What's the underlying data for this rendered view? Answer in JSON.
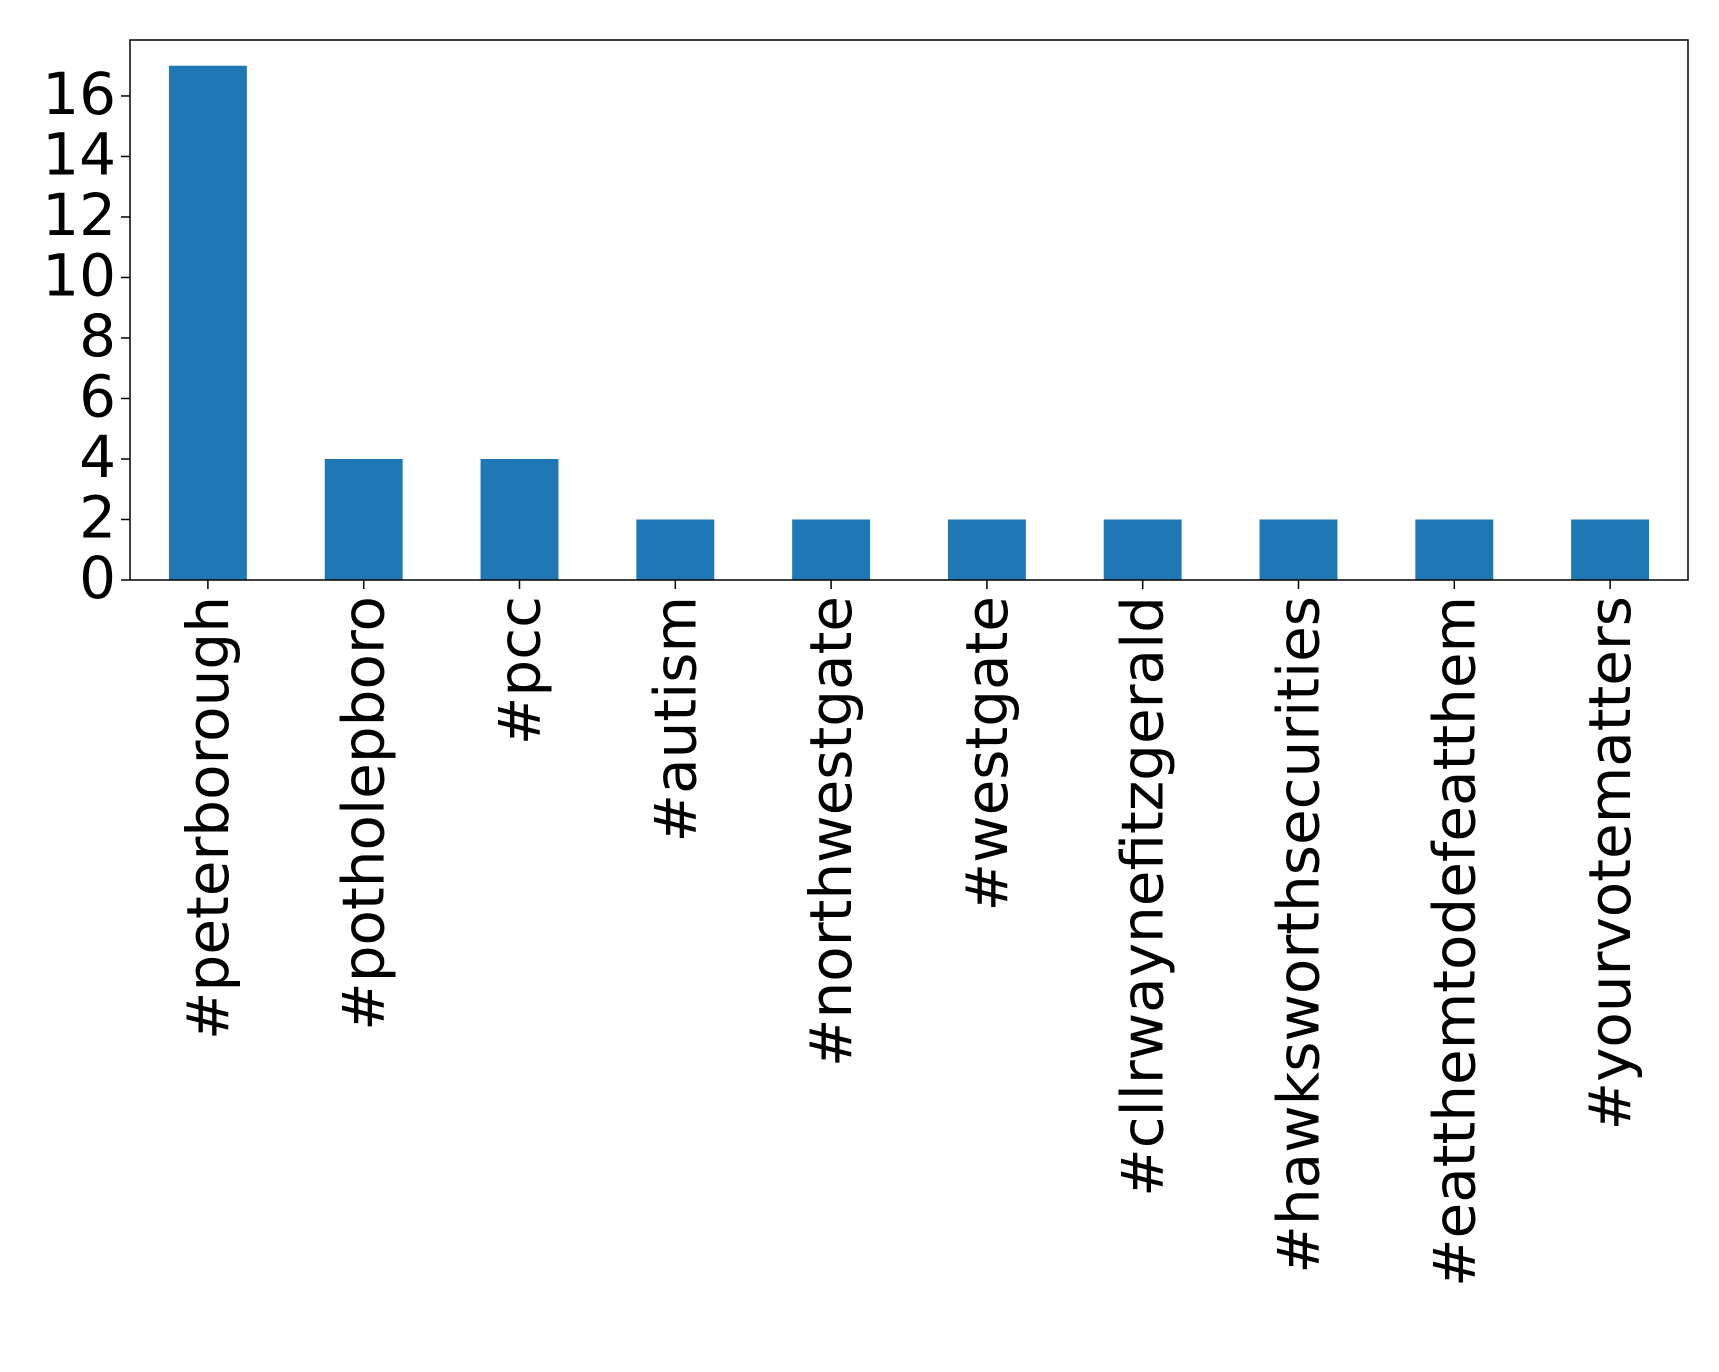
{
  "chart_data": {
    "type": "bar",
    "categories": [
      "#peterborough",
      "#potholepboro",
      "#pcc",
      "#autism",
      "#northwestgate",
      "#westgate",
      "#cllrwaynefitzgerald",
      "#hawksworthsecurities",
      "#eatthemtodefeatthem",
      "#yourvotematters"
    ],
    "values": [
      17,
      4,
      4,
      2,
      2,
      2,
      2,
      2,
      2,
      2
    ],
    "ylim": [
      0,
      17.85
    ],
    "yticks": [
      0,
      2,
      4,
      6,
      8,
      10,
      12,
      14,
      16
    ],
    "title": "",
    "xlabel": "",
    "ylabel": "",
    "grid": false,
    "colors": {
      "bar": "#1f77b4",
      "axis": "#000000"
    }
  }
}
